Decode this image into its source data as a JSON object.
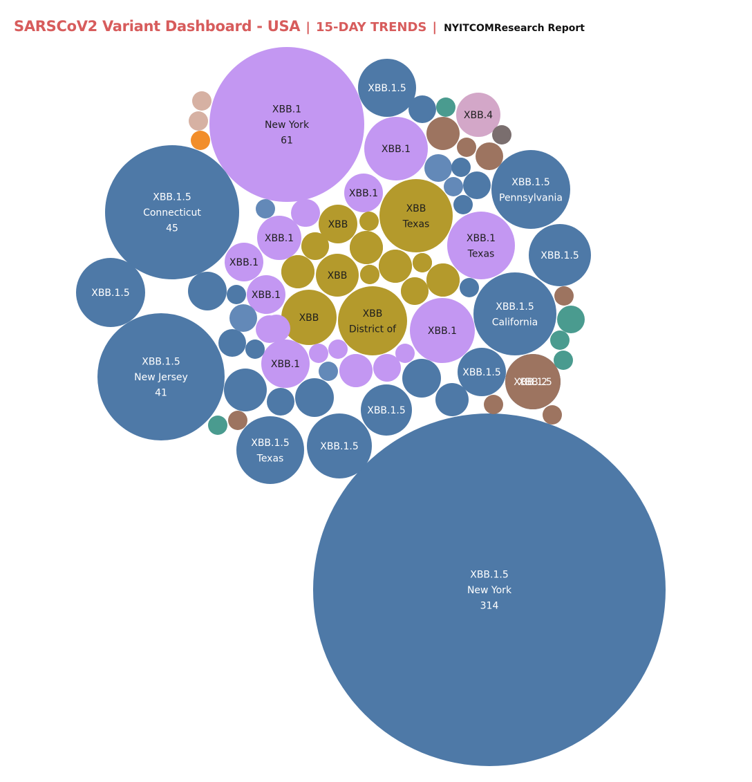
{
  "header": {
    "title": "SARSCoV2 Variant Dashboard - USA",
    "separator": "|",
    "subtitle": "15-DAY TRENDS",
    "source": "NYITCOMResearch Report"
  },
  "colors": {
    "XBB.1.5": "#4e79a7",
    "XBB.1.5 (light)": "#6389b8",
    "XBB.1": "#c397f2",
    "XBB": "#b49a2c",
    "XBB.4": "#d3a7c8",
    "XBB.2": "#9d7460",
    "BQ.1.1": "#4a9b8f",
    "BQ.1": "#d6b1a3",
    "BA.5": "#f28e2b",
    "other": "#7a6e6e"
  },
  "chart_data": {
    "type": "bubble",
    "title": "SARSCoV2 Variant Dashboard - USA",
    "size_measure": "count",
    "bubbles": [
      {
        "variant": "XBB.1.5",
        "state": "New York",
        "value": 314,
        "label": [
          "XBB.1.5",
          "New York",
          "314"
        ]
      },
      {
        "variant": "XBB.1",
        "state": "New York",
        "value": 61,
        "label": [
          "XBB.1",
          "New York",
          "61"
        ]
      },
      {
        "variant": "XBB.1.5",
        "state": "Connecticut",
        "value": 45,
        "label": [
          "XBB.1.5",
          "Connecticut",
          "45"
        ]
      },
      {
        "variant": "XBB.1.5",
        "state": "New Jersey",
        "value": 41,
        "label": [
          "XBB.1.5",
          "New Jersey",
          "41"
        ]
      },
      {
        "variant": "XBB.1.5",
        "state": "Pennsylvania",
        "value": 16,
        "label": [
          "XBB.1.5",
          "Pennsylvania"
        ]
      },
      {
        "variant": "XBB.1.5",
        "state": "California",
        "value": 18,
        "label": [
          "XBB.1.5",
          "California"
        ]
      },
      {
        "variant": "XBB",
        "state": "Texas",
        "value": 14,
        "label": [
          "XBB",
          "Texas"
        ]
      },
      {
        "variant": "XBB",
        "state": "District of",
        "value": 13,
        "label": [
          "XBB",
          "District of"
        ]
      },
      {
        "variant": "XBB.1",
        "state": "Texas",
        "value": 12,
        "label": [
          "XBB.1",
          "Texas"
        ]
      },
      {
        "variant": "XBB.1.5",
        "state": "Texas",
        "value": 12,
        "label": [
          "XBB.1.5",
          "Texas"
        ]
      },
      {
        "variant": "XBB.1.5",
        "value": 11,
        "label": [
          "XBB.1.5"
        ]
      },
      {
        "variant": "XBB.1.5",
        "value": 10,
        "label": [
          "XBB.1.5"
        ]
      },
      {
        "variant": "XBB.1.5",
        "value": 10,
        "label": [
          "XBB.1.5"
        ]
      },
      {
        "variant": "XBB.1.5",
        "value": 8,
        "label": [
          "XBB.1.5"
        ]
      },
      {
        "variant": "XBB.1.5",
        "value": 7,
        "label": [
          "XBB.1.5"
        ]
      },
      {
        "variant": "XBB.1.5",
        "value": 7,
        "label": [
          "XBB.1.5"
        ]
      },
      {
        "variant": "XBB.1.5",
        "value": 6,
        "label": [
          "XBB.1.5"
        ]
      },
      {
        "variant": "XBB.1",
        "value": 11,
        "label": [
          "XBB.1"
        ]
      },
      {
        "variant": "XBB.1",
        "value": 11,
        "label": [
          "XBB.1"
        ]
      },
      {
        "variant": "XBB.1",
        "value": 6,
        "label": [
          "XBB.1"
        ]
      },
      {
        "variant": "XBB.1",
        "value": 5,
        "label": [
          "XBB.1"
        ]
      },
      {
        "variant": "XBB.1",
        "value": 6,
        "label": [
          "XBB.1"
        ]
      },
      {
        "variant": "XBB.1",
        "value": 4,
        "label": [
          "XBB.1"
        ]
      },
      {
        "variant": "XBB.1",
        "value": 6,
        "label": [
          "XBB.1"
        ]
      },
      {
        "variant": "XBB",
        "value": 8,
        "label": [
          "XBB"
        ]
      },
      {
        "variant": "XBB",
        "value": 5,
        "label": [
          "XBB"
        ]
      },
      {
        "variant": "XBB",
        "value": 4,
        "label": [
          "XBB"
        ]
      },
      {
        "variant": "XBB.4",
        "value": 5,
        "label": [
          "XBB.4"
        ]
      },
      {
        "variant": "XBB.2",
        "value": 8,
        "label": [
          "XBB.2"
        ]
      },
      {
        "variant": "XBB.1.5",
        "value": 4
      },
      {
        "variant": "XBB.1.5",
        "value": 3
      },
      {
        "variant": "XBB.1.5",
        "value": 4
      },
      {
        "variant": "XBB.1.5",
        "value": 3
      },
      {
        "variant": "XBB.1.5",
        "value": 3
      },
      {
        "variant": "XBB.1.5",
        "value": 2
      },
      {
        "variant": "XBB.1.5",
        "value": 2
      },
      {
        "variant": "XBB.1.5",
        "value": 2
      },
      {
        "variant": "XBB.1.5",
        "value": 2
      },
      {
        "variant": "XBB.1.5",
        "value": 1
      },
      {
        "variant": "XBB.1.5",
        "value": 1
      },
      {
        "variant": "XBB.1.5",
        "value": 1
      },
      {
        "variant": "XBB.1.5",
        "value": 1
      },
      {
        "variant": "XBB.1.5",
        "value": 1
      },
      {
        "variant": "XBB.1.5",
        "value": 1
      },
      {
        "variant": "XBB.1.5",
        "value": 1
      },
      {
        "variant": "XBB.1.5",
        "value": 1
      },
      {
        "variant": "XBB.1.5",
        "value": 1
      },
      {
        "variant": "XBB.1.5",
        "value": 1
      },
      {
        "variant": "XBB.1.5",
        "value": 1
      },
      {
        "variant": "XBB.1.5",
        "value": 1
      },
      {
        "variant": "XBB.1.5",
        "value": 1
      },
      {
        "variant": "XBB.1.5",
        "value": 1
      },
      {
        "variant": "XBB.1.5",
        "value": 1
      },
      {
        "variant": "XBB.1.5",
        "value": 1
      },
      {
        "variant": "XBB.1.5",
        "value": 1
      },
      {
        "variant": "XBB.1.5",
        "value": 1
      },
      {
        "variant": "XBB.1.5",
        "value": 1
      },
      {
        "variant": "XBB.1.5",
        "value": 1
      },
      {
        "variant": "XBB.1.5",
        "value": 1
      },
      {
        "variant": "XBB.1.5",
        "value": 1
      },
      {
        "variant": "XBB.1.5",
        "value": 1
      },
      {
        "variant": "XBB.1",
        "value": 2
      },
      {
        "variant": "XBB.1",
        "value": 2
      },
      {
        "variant": "XBB.1",
        "value": 2
      },
      {
        "variant": "XBB.1",
        "value": 2
      },
      {
        "variant": "XBB.1",
        "value": 2
      },
      {
        "variant": "XBB.1",
        "value": 1
      },
      {
        "variant": "XBB.1",
        "value": 1
      },
      {
        "variant": "XBB.1",
        "value": 1
      },
      {
        "variant": "XBB",
        "value": 3
      },
      {
        "variant": "XBB",
        "value": 3
      },
      {
        "variant": "XBB",
        "value": 3
      },
      {
        "variant": "XBB",
        "value": 3
      },
      {
        "variant": "XBB",
        "value": 2
      },
      {
        "variant": "XBB",
        "value": 2
      },
      {
        "variant": "XBB",
        "value": 1
      },
      {
        "variant": "XBB",
        "value": 1
      },
      {
        "variant": "XBB.2",
        "value": 2
      },
      {
        "variant": "XBB.2",
        "value": 2
      },
      {
        "variant": "XBB.2",
        "value": 1
      },
      {
        "variant": "XBB.2",
        "value": 1
      },
      {
        "variant": "XBB.2",
        "value": 1
      },
      {
        "variant": "XBB.2",
        "value": 1
      },
      {
        "variant": "BQ.1.1",
        "value": 2
      },
      {
        "variant": "BQ.1.1",
        "value": 1
      },
      {
        "variant": "BQ.1.1",
        "value": 1
      },
      {
        "variant": "BQ.1.1",
        "value": 1
      },
      {
        "variant": "BQ.1.1",
        "value": 1
      },
      {
        "variant": "BQ.1",
        "value": 1
      },
      {
        "variant": "BQ.1",
        "value": 1
      },
      {
        "variant": "BA.5",
        "value": 1
      },
      {
        "variant": "other",
        "value": 1
      }
    ]
  }
}
